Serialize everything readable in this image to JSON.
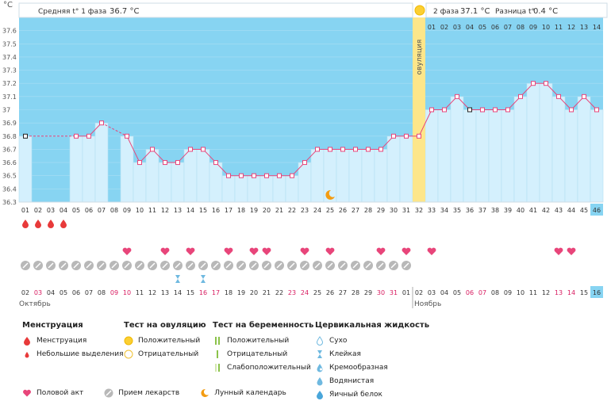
{
  "header": {
    "unit": "°C",
    "phase1_label": "Средняя t° 1 фаза",
    "phase1_value": "36.7 °C",
    "phase2_label": "2 фаза",
    "phase2_value": "37.1 °C",
    "diff_label": "Разница t°",
    "diff_value": "0.4 °C",
    "ovulation_label": "овуляция"
  },
  "colors": {
    "sky": "#87d4f2",
    "bar": "#d4f0fd",
    "bar_stroke": "#b5dff2",
    "line": "#e8457a",
    "ovulation": "#fde68a",
    "menstruation": "#e83a3a",
    "heart": "#e8457a",
    "pill": "#b8b8b8",
    "weekend": "#d81b60",
    "highlight": "#87d4f2"
  },
  "chart_data": {
    "type": "line",
    "ylabel": "°C",
    "ylim": [
      36.3,
      37.7
    ],
    "yticks": [
      "37.6",
      "37.5",
      "37.4",
      "37.3",
      "37.2",
      "37.1",
      "37",
      "36.9",
      "36.8",
      "36.7",
      "36.6",
      "36.5",
      "36.4",
      "36.3"
    ],
    "cycle_days": [
      "01",
      "02",
      "03",
      "04",
      "05",
      "06",
      "07",
      "08",
      "09",
      "10",
      "11",
      "12",
      "13",
      "14",
      "15",
      "16",
      "17",
      "18",
      "19",
      "20",
      "21",
      "22",
      "23",
      "24",
      "25",
      "26",
      "27",
      "28",
      "29",
      "30",
      "31",
      "32",
      "33",
      "34",
      "35",
      "36",
      "37",
      "38",
      "39",
      "40",
      "41",
      "42",
      "43",
      "44",
      "45",
      "46"
    ],
    "phase2_days": [
      "01",
      "02",
      "03",
      "04",
      "05",
      "06",
      "07",
      "08",
      "09",
      "10",
      "11",
      "12",
      "13",
      "14"
    ],
    "temperatures": [
      36.8,
      null,
      null,
      null,
      36.8,
      36.8,
      36.9,
      null,
      36.8,
      36.6,
      36.7,
      36.6,
      36.6,
      36.7,
      36.7,
      36.6,
      36.5,
      36.5,
      36.5,
      36.5,
      36.5,
      36.5,
      36.6,
      36.7,
      36.7,
      36.7,
      36.7,
      36.7,
      36.7,
      36.8,
      36.8,
      36.8,
      37.0,
      37.0,
      37.1,
      37.0,
      37.0,
      37.0,
      37.0,
      37.1,
      37.2,
      37.2,
      37.1,
      37.0,
      37.1,
      37.0
    ],
    "ovulation_day": 32,
    "moon_day": 25,
    "menstruation_days": [
      1,
      2,
      3,
      4
    ],
    "intercourse_days": [
      9,
      12,
      14,
      17,
      19,
      20,
      23,
      25,
      29,
      31,
      33,
      43,
      44
    ],
    "medication_days": [
      1,
      2,
      3,
      4,
      5,
      6,
      7,
      8,
      9,
      10,
      11,
      12,
      13,
      14,
      15,
      16,
      17,
      18,
      19,
      20,
      21,
      22,
      23,
      24,
      25,
      26,
      27,
      28,
      29,
      30,
      31
    ],
    "cervical_sticky_days": [
      13,
      15
    ],
    "calendar_dates": [
      "02",
      "03",
      "04",
      "05",
      "06",
      "07",
      "08",
      "09",
      "10",
      "11",
      "12",
      "13",
      "14",
      "15",
      "16",
      "17",
      "18",
      "19",
      "20",
      "21",
      "22",
      "23",
      "24",
      "25",
      "26",
      "27",
      "28",
      "29",
      "30",
      "31",
      "01",
      "02",
      "03",
      "04",
      "05",
      "06",
      "07",
      "08",
      "09",
      "10",
      "11",
      "12",
      "13",
      "14",
      "15",
      "16"
    ],
    "weekend_days": [
      1,
      7,
      8,
      14,
      15,
      21,
      22,
      28,
      29,
      35,
      36,
      42,
      43
    ],
    "month1": "Октябрь",
    "month2": "Ноябрь"
  },
  "legend": {
    "menstruation": {
      "title": "Менструация",
      "items": [
        "Менструация",
        "Небольшие выделения"
      ]
    },
    "ovulation_test": {
      "title": "Тест на овуляцию",
      "items": [
        "Положительный",
        "Отрицательный"
      ]
    },
    "pregnancy_test": {
      "title": "Тест на беременность",
      "items": [
        "Положительный",
        "Отрицательный",
        "Слабоположительный"
      ]
    },
    "cervical": {
      "title": "Цервикальная жидкость",
      "items": [
        "Сухо",
        "Клейкая",
        "Кремообразная",
        "Водянистая",
        "Яичный белок"
      ]
    },
    "bottom": [
      "Половой акт",
      "Прием лекарств",
      "Лунный календарь"
    ]
  }
}
